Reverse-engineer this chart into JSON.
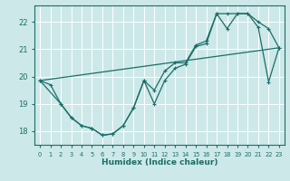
{
  "xlabel": "Humidex (Indice chaleur)",
  "bg_color": "#cde8e8",
  "line_color": "#1a6e68",
  "grid_color": "#b8d8d8",
  "xlim": [
    -0.5,
    23.5
  ],
  "ylim": [
    17.5,
    22.6
  ],
  "yticks": [
    18,
    19,
    20,
    21,
    22
  ],
  "xticks": [
    0,
    1,
    2,
    3,
    4,
    5,
    6,
    7,
    8,
    9,
    10,
    11,
    12,
    13,
    14,
    15,
    16,
    17,
    18,
    19,
    20,
    21,
    22,
    23
  ],
  "line1_x": [
    0,
    1,
    2,
    3,
    4,
    5,
    6,
    7,
    8,
    9,
    10,
    11,
    12,
    13,
    14,
    15,
    16,
    17,
    18,
    19,
    20,
    21,
    22,
    23
  ],
  "line1_y": [
    19.85,
    19.7,
    19.0,
    18.5,
    18.2,
    18.1,
    17.85,
    17.9,
    18.2,
    18.85,
    19.85,
    19.0,
    19.85,
    20.3,
    20.45,
    21.1,
    21.2,
    22.3,
    22.3,
    22.3,
    22.3,
    21.8,
    19.8,
    21.05
  ],
  "line2_x": [
    0,
    2,
    3,
    4,
    5,
    6,
    7,
    8,
    9,
    10,
    11,
    12,
    13,
    14,
    15,
    16,
    17,
    18,
    19,
    20,
    21,
    22,
    23
  ],
  "line2_y": [
    19.85,
    19.0,
    18.5,
    18.2,
    18.1,
    17.85,
    17.9,
    18.2,
    18.85,
    19.85,
    19.5,
    20.2,
    20.5,
    20.5,
    21.15,
    21.3,
    22.3,
    21.75,
    22.3,
    22.3,
    22.0,
    21.75,
    21.05
  ],
  "line3_x": [
    0,
    23
  ],
  "line3_y": [
    19.85,
    21.05
  ]
}
